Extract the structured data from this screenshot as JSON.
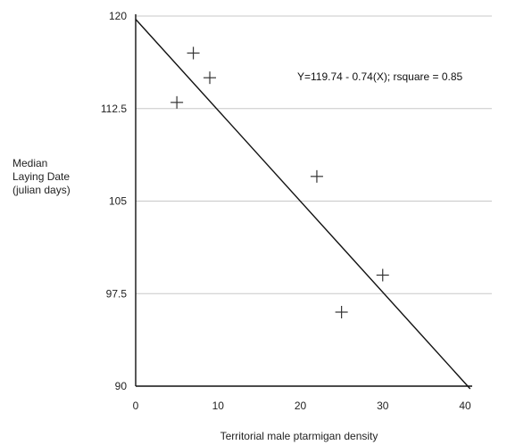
{
  "chart_data": {
    "type": "scatter",
    "title": "",
    "xlabel": "Territorial male ptarmigan density",
    "ylabel_lines": [
      "Median",
      "Laying Date",
      "(julian days)"
    ],
    "xlim": [
      0,
      40
    ],
    "ylim": [
      90,
      120
    ],
    "x_ticks": [
      0,
      10,
      20,
      30,
      40
    ],
    "y_ticks": [
      90,
      97.5,
      105,
      112.5,
      120
    ],
    "y_tick_labels": [
      "90",
      "97.5",
      "105",
      "112.5",
      "120"
    ],
    "grid": "horizontal",
    "marker": "plus",
    "points": [
      {
        "x": 5,
        "y": 113
      },
      {
        "x": 7,
        "y": 117
      },
      {
        "x": 9,
        "y": 115
      },
      {
        "x": 22,
        "y": 107
      },
      {
        "x": 25,
        "y": 96
      },
      {
        "x": 30,
        "y": 99
      }
    ],
    "regression": {
      "intercept": 119.74,
      "slope": -0.74
    },
    "annotation": "Y=119.74 - 0.74(X); rsquare = 0.85"
  }
}
